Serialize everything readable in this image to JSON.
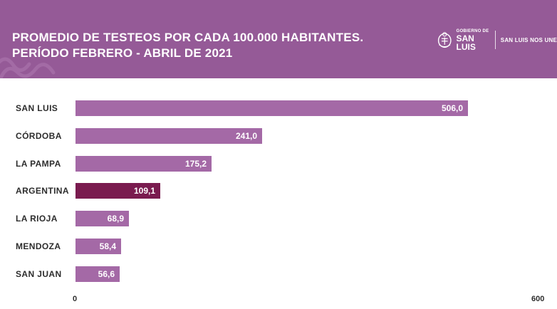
{
  "header": {
    "title_line1": "PROMEDIO DE TESTEOS POR CADA 100.000 HABITANTES.",
    "title_line2": "PERÍODO FEBRERO - ABRIL DE 2021",
    "logo_small": "GOBIERNO DE",
    "logo_big": "SAN LUIS",
    "motto": "SAN LUIS NOS UNE",
    "background_color": "#955a97"
  },
  "colors": {
    "bar": "#a469a6",
    "highlight_bar": "#7a1b4f",
    "label_text": "#2d2d2d"
  },
  "chart_data": {
    "type": "bar",
    "orientation": "horizontal",
    "title": "PROMEDIO DE TESTEOS POR CADA 100.000 HABITANTES. PERÍODO FEBRERO - ABRIL DE 2021",
    "categories": [
      "SAN LUIS",
      "CÓRDOBA",
      "LA PAMPA",
      "ARGENTINA",
      "LA RIOJA",
      "MENDOZA",
      "SAN JUAN"
    ],
    "values": [
      506.0,
      241.0,
      175.2,
      109.1,
      68.9,
      58.4,
      56.6
    ],
    "value_labels": [
      "506,0",
      "241,0",
      "175,2",
      "109,1",
      "68,9",
      "58,4",
      "56,6"
    ],
    "highlight_category": "ARGENTINA",
    "xlim": [
      0,
      600
    ],
    "x_ticks": [
      "0",
      "600"
    ],
    "grid": false,
    "legend": "none"
  }
}
